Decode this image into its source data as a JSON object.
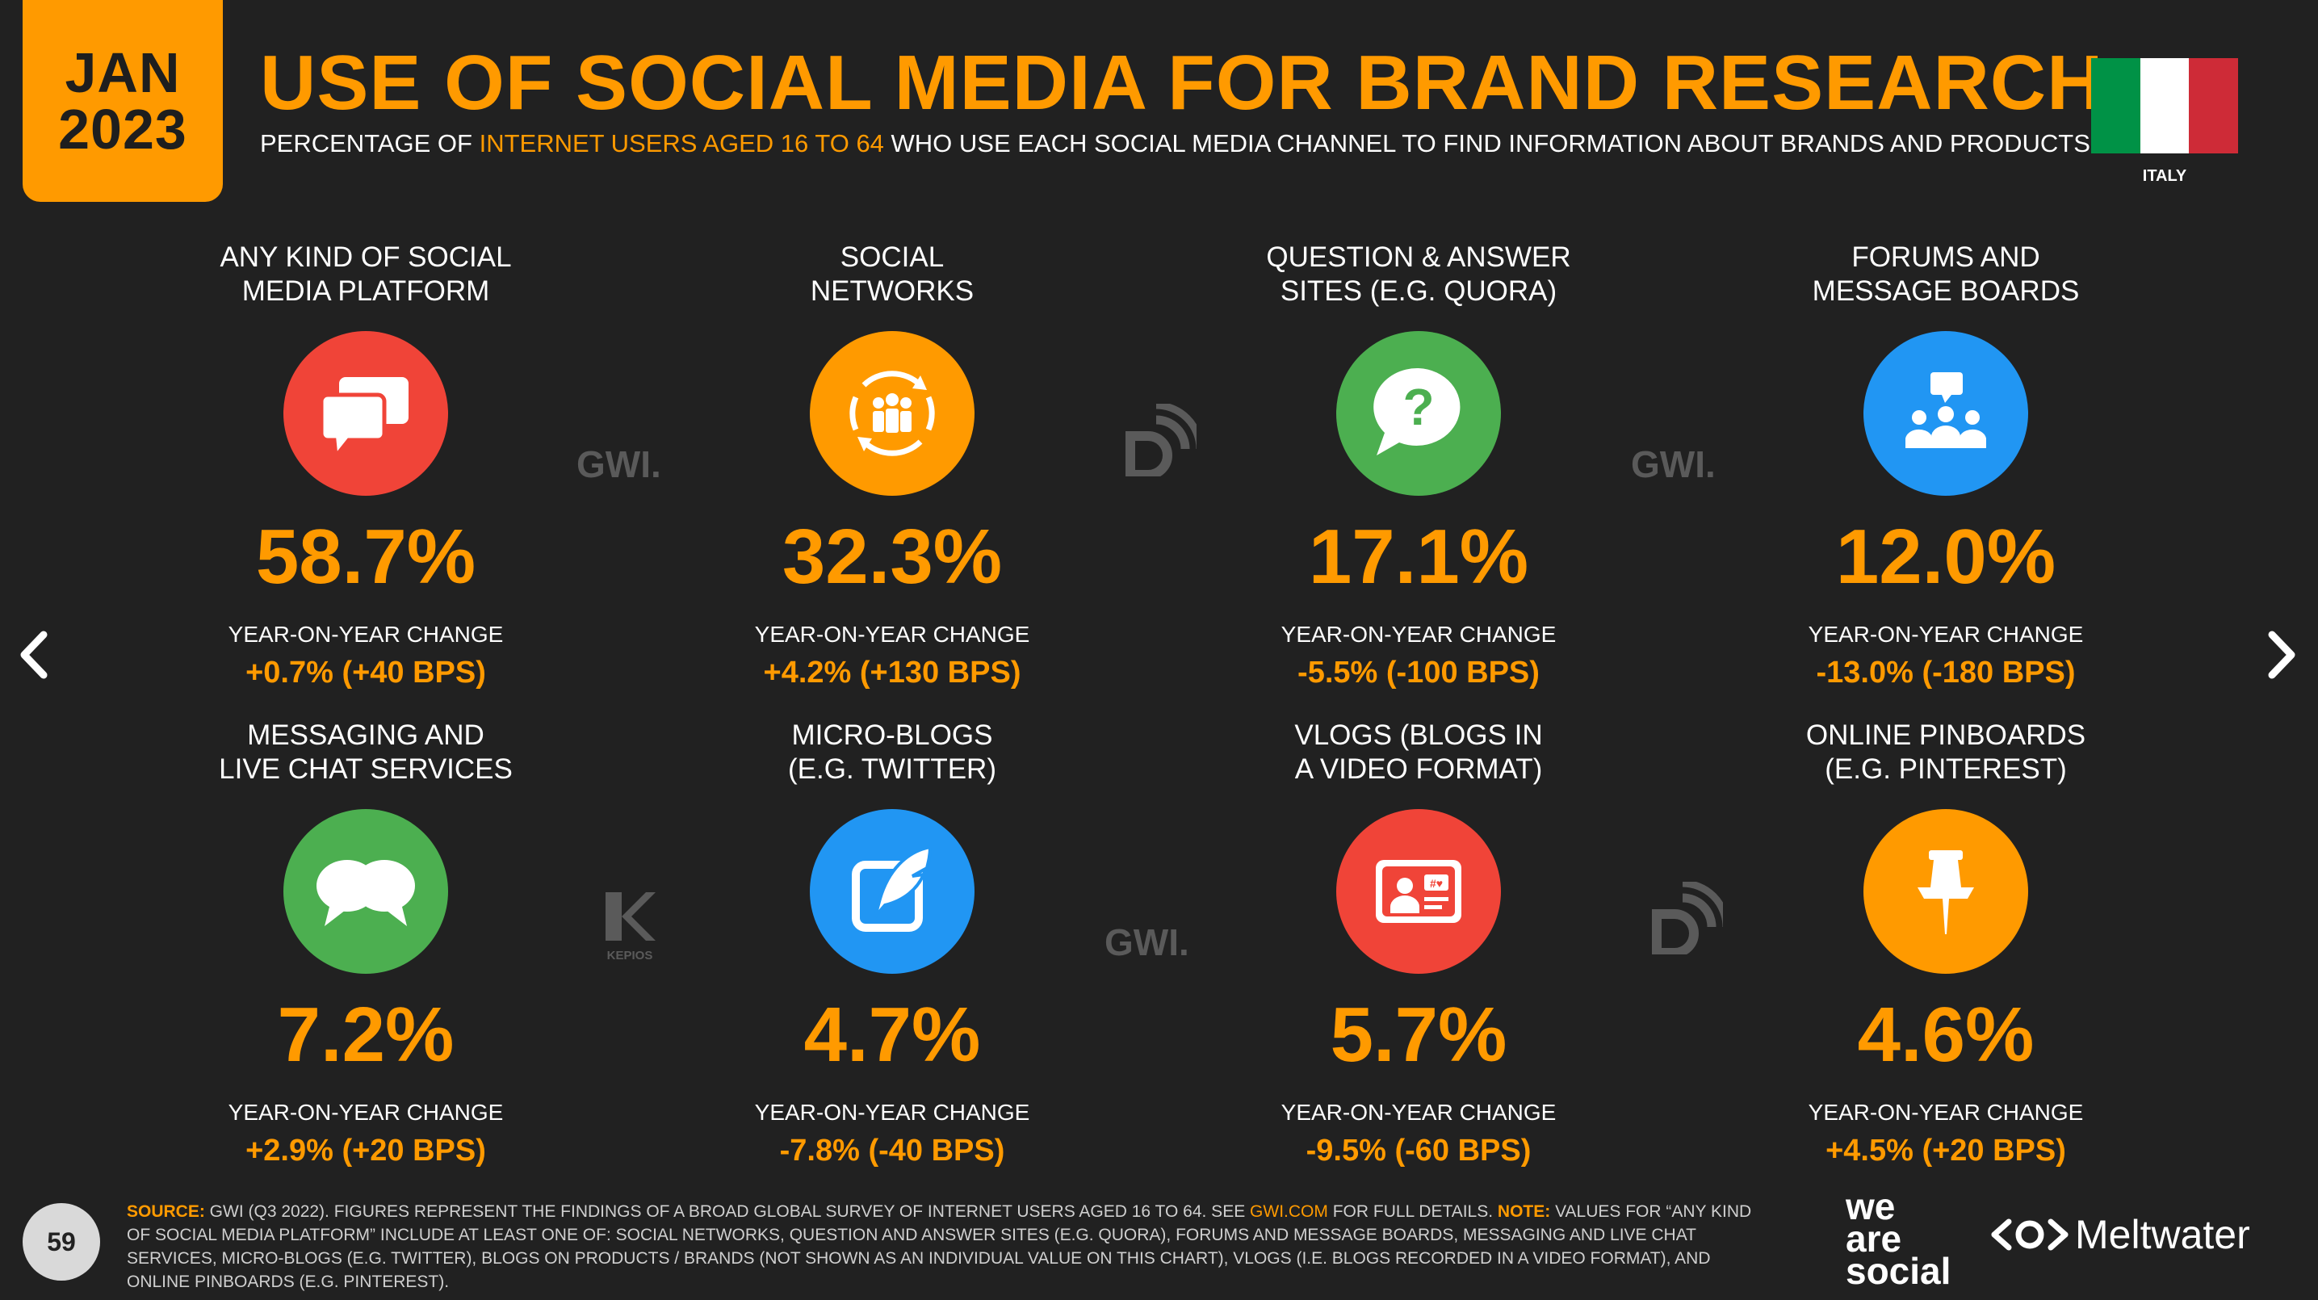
{
  "header": {
    "date_month": "JAN",
    "date_year": "2023",
    "title": "USE OF SOCIAL MEDIA FOR BRAND RESEARCH",
    "subtitle_pre": "PERCENTAGE OF ",
    "subtitle_highlight": "INTERNET USERS AGED 16 TO 64",
    "subtitle_post": " WHO USE EACH SOCIAL MEDIA CHANNEL TO FIND INFORMATION ABOUT BRANDS AND PRODUCTS",
    "country": "ITALY"
  },
  "colors": {
    "accent": "#ff9a00",
    "red": "#f04438",
    "orange": "#ff9a00",
    "green": "#4caf50",
    "blue": "#2196f3"
  },
  "yoy_label": "YEAR-ON-YEAR CHANGE",
  "cells": [
    {
      "label1": "ANY KIND OF SOCIAL",
      "label2": "MEDIA PLATFORM",
      "value": "58.7%",
      "change": "+0.7% (+40 BPS)",
      "icon": "chat-bubbles-icon"
    },
    {
      "label1": "SOCIAL",
      "label2": "NETWORKS",
      "value": "32.3%",
      "change": "+4.2% (+130 BPS)",
      "icon": "people-cycle-icon"
    },
    {
      "label1": "QUESTION & ANSWER",
      "label2": "SITES (E.G. QUORA)",
      "value": "17.1%",
      "change": "-5.5% (-100 BPS)",
      "icon": "question-bubble-icon"
    },
    {
      "label1": "FORUMS AND",
      "label2": "MESSAGE BOARDS",
      "value": "12.0%",
      "change": "-13.0% (-180 BPS)",
      "icon": "forum-group-icon"
    },
    {
      "label1": "MESSAGING AND",
      "label2": "LIVE CHAT SERVICES",
      "value": "7.2%",
      "change": "+2.9% (+20 BPS)",
      "icon": "chat-two-bubbles-icon"
    },
    {
      "label1": "MICRO-BLOGS",
      "label2": "(E.G. TWITTER)",
      "value": "4.7%",
      "change": "-7.8% (-40 BPS)",
      "icon": "quill-edit-icon"
    },
    {
      "label1": "VLOGS (BLOGS IN",
      "label2": "A VIDEO FORMAT)",
      "value": "5.7%",
      "change": "-9.5% (-60 BPS)",
      "icon": "video-blog-icon"
    },
    {
      "label1": "ONLINE PINBOARDS",
      "label2": "(E.G. PINTEREST)",
      "value": "4.6%",
      "change": "+4.5% (+20 BPS)",
      "icon": "pushpin-icon"
    }
  ],
  "watermarks": {
    "gwi": "GWI.",
    "kepios": "KEPIOS"
  },
  "footer": {
    "page": "59",
    "source_key": "SOURCE:",
    "source_text": " GWI (Q3 2022). FIGURES REPRESENT THE FINDINGS OF A BROAD GLOBAL SURVEY OF INTERNET USERS AGED 16 TO 64. SEE ",
    "source_link": "GWI.COM",
    "source_text2": " FOR FULL DETAILS. ",
    "note_key": "NOTE:",
    "note_text": " VALUES FOR “ANY KIND OF SOCIAL MEDIA PLATFORM” INCLUDE AT LEAST ONE OF: SOCIAL NETWORKS, QUESTION AND ANSWER SITES (E.G. QUORA), FORUMS AND MESSAGE BOARDS, MESSAGING AND LIVE CHAT SERVICES, MICRO-BLOGS (E.G. TWITTER), BLOGS ON PRODUCTS / BRANDS (NOT SHOWN AS AN INDIVIDUAL VALUE ON THIS CHART), VLOGS (I.E. BLOGS RECORDED IN A VIDEO FORMAT), AND ONLINE PINBOARDS (E.G. PINTEREST).",
    "brand1_l1": "we",
    "brand1_l2": "are",
    "brand1_l3": "social",
    "brand2": "Meltwater"
  }
}
